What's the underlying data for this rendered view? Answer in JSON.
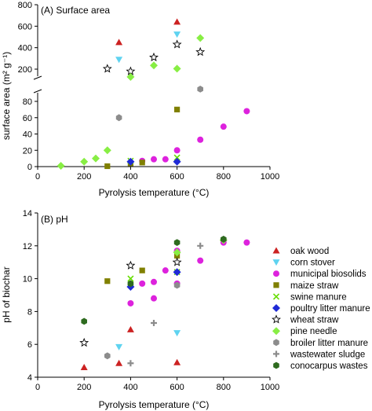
{
  "chart_data": [
    {
      "type": "scatter",
      "title": "(A) Surface area",
      "xlabel": "Pyrolysis temperature (°C)",
      "ylabel": "surface area (m² g⁻¹)",
      "xlim": [
        0,
        1000
      ],
      "x_ticks": [
        0,
        200,
        400,
        600,
        800,
        1000
      ],
      "y_axis_broken": true,
      "upper_ylim": [
        150,
        800
      ],
      "upper_y_ticks": [
        200,
        400,
        600,
        800
      ],
      "lower_ylim": [
        0,
        100
      ],
      "lower_y_ticks": [
        0,
        20,
        40,
        60,
        80
      ],
      "legend": "none",
      "series": [
        {
          "name": "oak wood",
          "points": [
            [
              350,
              450
            ],
            [
              600,
              640
            ]
          ]
        },
        {
          "name": "corn stover",
          "points": [
            [
              350,
              290
            ],
            [
              600,
              525
            ]
          ]
        },
        {
          "name": "municipal biosolids",
          "points": [
            [
              450,
              7
            ],
            [
              500,
              9
            ],
            [
              550,
              9
            ],
            [
              600,
              20
            ],
            [
              700,
              33
            ],
            [
              800,
              49
            ],
            [
              900,
              68
            ]
          ]
        },
        {
          "name": "maize straw",
          "points": [
            [
              300,
              0.5
            ],
            [
              400,
              4
            ],
            [
              450,
              5
            ],
            [
              600,
              70
            ]
          ]
        },
        {
          "name": "swine manure",
          "points": [
            [
              400,
              7
            ],
            [
              600,
              11
            ]
          ]
        },
        {
          "name": "poultry litter manure",
          "points": [
            [
              400,
              6
            ],
            [
              600,
              6
            ]
          ]
        },
        {
          "name": "wheat straw",
          "points": [
            [
              300,
              120
            ],
            [
              400,
              180
            ],
            [
              500,
              310
            ],
            [
              600,
              430
            ],
            [
              700,
              360
            ]
          ]
        },
        {
          "name": "pine needle",
          "points": [
            [
              100,
              1
            ],
            [
              200,
              6
            ],
            [
              250,
              10
            ],
            [
              300,
              20
            ],
            [
              400,
              110
            ],
            [
              500,
              235
            ],
            [
              600,
              205
            ],
            [
              700,
              490
            ]
          ]
        },
        {
          "name": "broiler litter manure",
          "points": [
            [
              350,
              60
            ],
            [
              700,
              95
            ]
          ]
        },
        {
          "name": "wastewater sludge",
          "points": []
        },
        {
          "name": "conocarpus wastes",
          "points": []
        }
      ]
    },
    {
      "type": "scatter",
      "title": "(B) pH",
      "xlabel": "Pyrolysis temperature (°C)",
      "ylabel": "pH of biochar",
      "xlim": [
        0,
        1000
      ],
      "x_ticks": [
        0,
        200,
        400,
        600,
        800,
        1000
      ],
      "ylim": [
        4,
        14
      ],
      "y_ticks": [
        4,
        6,
        8,
        10,
        12,
        14
      ],
      "legend": "right",
      "series": [
        {
          "name": "oak wood",
          "points": [
            [
              200,
              4.6
            ],
            [
              350,
              4.85
            ],
            [
              400,
              6.9
            ],
            [
              600,
              4.9
            ]
          ]
        },
        {
          "name": "corn stover",
          "points": [
            [
              350,
              5.85
            ],
            [
              600,
              6.7
            ]
          ]
        },
        {
          "name": "municipal biosolids",
          "points": [
            [
              400,
              8.5
            ],
            [
              450,
              9.7
            ],
            [
              500,
              8.8
            ],
            [
              500,
              9.8
            ],
            [
              550,
              10.5
            ],
            [
              600,
              9.7
            ],
            [
              600,
              11.7
            ],
            [
              700,
              11.1
            ],
            [
              800,
              12.2
            ],
            [
              900,
              12.2
            ]
          ]
        },
        {
          "name": "maize straw",
          "points": [
            [
              300,
              9.85
            ],
            [
              450,
              10.5
            ],
            [
              600,
              11.4
            ]
          ]
        },
        {
          "name": "swine manure",
          "points": [
            [
              400,
              10.0
            ],
            [
              600,
              10.4
            ]
          ]
        },
        {
          "name": "poultry litter manure",
          "points": [
            [
              400,
              9.5
            ],
            [
              600,
              10.4
            ]
          ]
        },
        {
          "name": "wheat straw",
          "points": [
            [
              200,
              6.1
            ],
            [
              400,
              10.8
            ],
            [
              600,
              11.0
            ]
          ]
        },
        {
          "name": "pine needle",
          "points": [
            [
              600,
              11.6
            ],
            [
              800,
              12.35
            ]
          ]
        },
        {
          "name": "broiler litter manure",
          "points": [
            [
              300,
              5.3
            ],
            [
              600,
              9.6
            ],
            [
              800,
              12.4
            ]
          ]
        },
        {
          "name": "wastewater sludge",
          "points": [
            [
              400,
              4.85
            ],
            [
              500,
              7.3
            ],
            [
              700,
              12.0
            ]
          ]
        },
        {
          "name": "conocarpus wastes",
          "points": [
            [
              200,
              7.4
            ],
            [
              400,
              9.7
            ],
            [
              600,
              12.2
            ],
            [
              800,
              12.4
            ]
          ]
        }
      ]
    }
  ],
  "legend_items": [
    {
      "label": "oak wood",
      "marker": "triangle",
      "color": "#cc2222"
    },
    {
      "label": "corn stover",
      "marker": "triangle-down",
      "color": "#5fd3f0"
    },
    {
      "label": "municipal biosolids",
      "marker": "circle",
      "color": "#dd22dd"
    },
    {
      "label": "maize straw",
      "marker": "square",
      "color": "#808000"
    },
    {
      "label": "swine manure",
      "marker": "x",
      "color": "#66dd00"
    },
    {
      "label": "poultry litter manure",
      "marker": "diamond",
      "color": "#1f2ad6"
    },
    {
      "label": "wheat straw",
      "marker": "star",
      "color": "#000000"
    },
    {
      "label": "pine needle",
      "marker": "diamond",
      "color": "#88ee44"
    },
    {
      "label": "broiler litter manure",
      "marker": "hexagon",
      "color": "#8c8c8c"
    },
    {
      "label": "wastewater sludge",
      "marker": "plus",
      "color": "#8c8c8c"
    },
    {
      "label": "conocarpus wastes",
      "marker": "hexagon",
      "color": "#2e6b1f"
    }
  ]
}
